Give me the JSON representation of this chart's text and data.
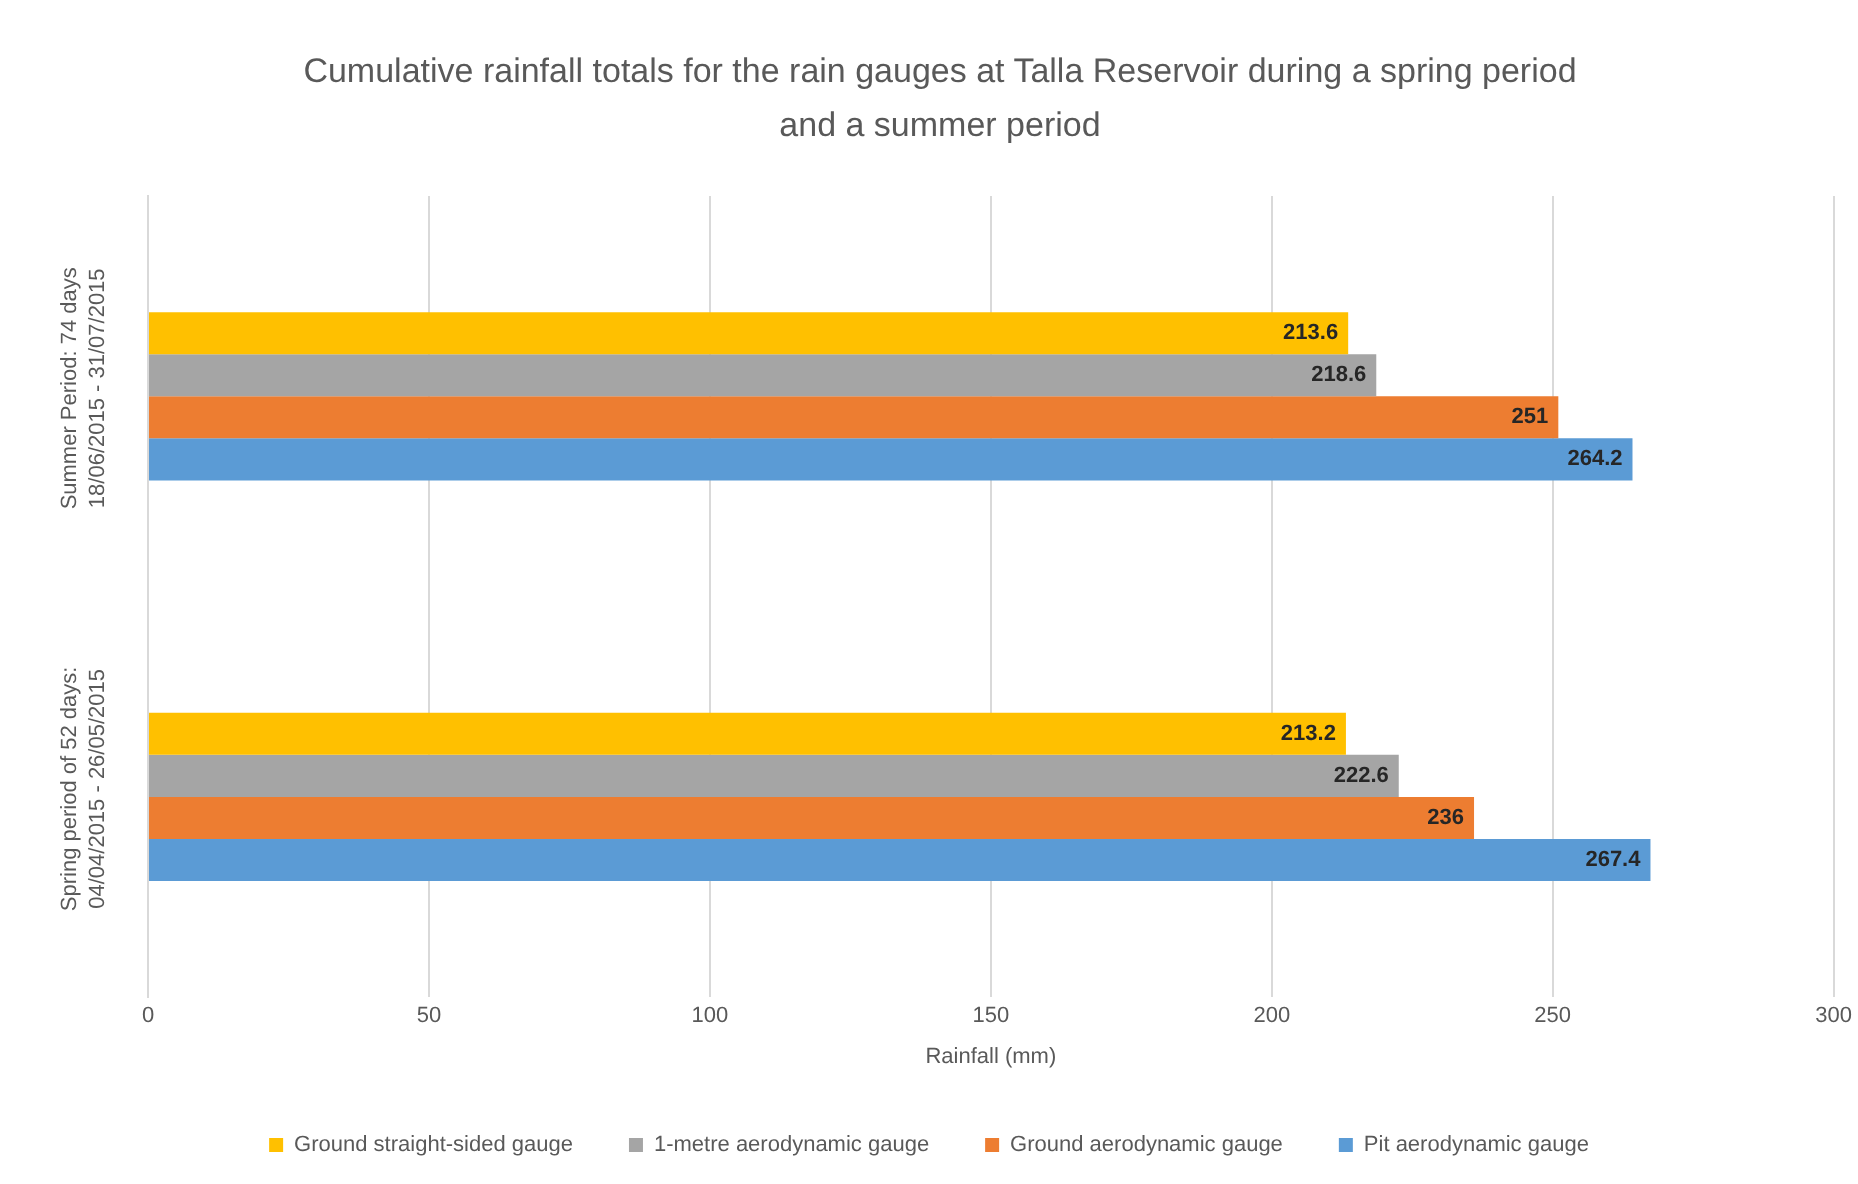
{
  "chart_data": {
    "type": "bar",
    "orientation": "horizontal",
    "title": "Cumulative rainfall totals for the rain gauges at Talla Reservoir during a spring period and a summer period",
    "xlabel": "Rainfall (mm)",
    "categories": [
      "Summer Period: 74 days\n18/06/2015 - 31/07/2015",
      "Spring period of 52 days:\n04/04/2015 - 26/05/2015"
    ],
    "series": [
      {
        "name": "Ground straight-sided gauge",
        "color": "#ffc000",
        "values": [
          213.6,
          213.2
        ]
      },
      {
        "name": "1-metre aerodynamic gauge",
        "color": "#a5a5a5",
        "values": [
          218.6,
          222.6
        ]
      },
      {
        "name": "Ground aerodynamic gauge",
        "color": "#ed7d31",
        "values": [
          251,
          236
        ]
      },
      {
        "name": "Pit aerodynamic gauge",
        "color": "#5b9bd5",
        "values": [
          264.2,
          267.4
        ]
      }
    ],
    "xlim": [
      0,
      300
    ],
    "xticks": [
      0,
      50,
      100,
      150,
      200,
      250,
      300
    ],
    "grid": "x",
    "legend": "bottom",
    "data_labels": true
  }
}
